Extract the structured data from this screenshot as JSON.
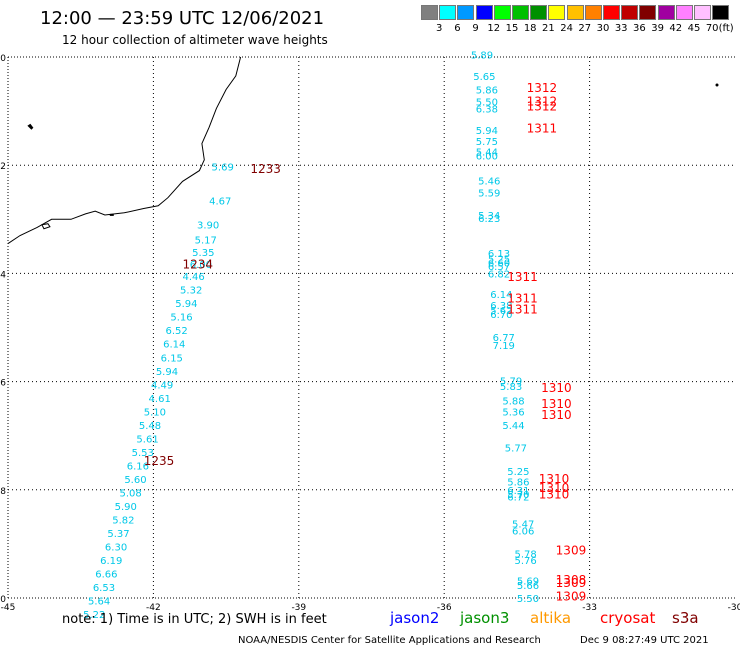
{
  "header": {
    "title": "12:00 — 23:59 UTC 12/06/2021",
    "subtitle": "12 hour collection of altimeter wave heights"
  },
  "scale": {
    "unit": "(ft)",
    "colors": [
      "#808080",
      "#00ffff",
      "#0099ff",
      "#0000ff",
      "#00ff00",
      "#00c000",
      "#009000",
      "#ffff00",
      "#ffc000",
      "#ff8000",
      "#ff0000",
      "#c00000",
      "#800000",
      "#a000a0",
      "#ff80ff",
      "#ffc0ff",
      "#000000"
    ],
    "labels": [
      "3",
      "6",
      "9",
      "12",
      "15",
      "18",
      "21",
      "24",
      "27",
      "30",
      "33",
      "36",
      "39",
      "42",
      "45",
      "70"
    ]
  },
  "axes": {
    "x_ticks": [
      "-45",
      "-42",
      "-39",
      "-36",
      "-33",
      "-30"
    ],
    "y_ticks": [
      "-20",
      "-22",
      "-24",
      "-26",
      "-28",
      "-30"
    ]
  },
  "passes": {
    "west_times": [
      {
        "text": "1233",
        "lon": -40.0,
        "lat": -22.05
      },
      {
        "text": "1234",
        "lon": -41.4,
        "lat": -23.82
      },
      {
        "text": "1235",
        "lon": -42.2,
        "lat": -27.45
      }
    ],
    "east_times": [
      {
        "text": "1312",
        "lon": -34.3,
        "lat": -20.55
      },
      {
        "text": "1312",
        "lon": -34.3,
        "lat": -20.8
      },
      {
        "text": "1312",
        "lon": -34.3,
        "lat": -20.9
      },
      {
        "text": "1311",
        "lon": -34.3,
        "lat": -21.3
      },
      {
        "text": "1311",
        "lon": -34.7,
        "lat": -24.05
      },
      {
        "text": "1311",
        "lon": -34.7,
        "lat": -24.45
      },
      {
        "text": "1311",
        "lon": -34.7,
        "lat": -24.65
      },
      {
        "text": "1310",
        "lon": -34.0,
        "lat": -26.1
      },
      {
        "text": "1310",
        "lon": -34.0,
        "lat": -26.4
      },
      {
        "text": "1310",
        "lon": -34.0,
        "lat": -26.6
      },
      {
        "text": "1310",
        "lon": -34.05,
        "lat": -27.78
      },
      {
        "text": "1310",
        "lon": -34.05,
        "lat": -27.95
      },
      {
        "text": "1310",
        "lon": -34.05,
        "lat": -28.07
      },
      {
        "text": "1309",
        "lon": -33.7,
        "lat": -29.1
      },
      {
        "text": "1308",
        "lon": -33.7,
        "lat": -29.65
      },
      {
        "text": "1309",
        "lon": -33.7,
        "lat": -29.7
      },
      {
        "text": "1309",
        "lon": -33.7,
        "lat": -29.95
      }
    ],
    "west_swh": [
      {
        "v": "5.69",
        "lon": -40.8,
        "lat": -22.02
      },
      {
        "v": "4.67",
        "lon": -40.85,
        "lat": -22.65
      },
      {
        "v": "3.90",
        "lon": -41.1,
        "lat": -23.1
      },
      {
        "v": "5.17",
        "lon": -41.15,
        "lat": -23.37
      },
      {
        "v": "5.35",
        "lon": -41.2,
        "lat": -23.6
      },
      {
        "v": "6.00",
        "lon": -41.25,
        "lat": -23.83
      },
      {
        "v": "4.46",
        "lon": -41.4,
        "lat": -24.05
      },
      {
        "v": "5.32",
        "lon": -41.45,
        "lat": -24.3
      },
      {
        "v": "5.94",
        "lon": -41.55,
        "lat": -24.55
      },
      {
        "v": "5.16",
        "lon": -41.65,
        "lat": -24.8
      },
      {
        "v": "6.52",
        "lon": -41.75,
        "lat": -25.05
      },
      {
        "v": "6.14",
        "lon": -41.8,
        "lat": -25.3
      },
      {
        "v": "6.15",
        "lon": -41.85,
        "lat": -25.55
      },
      {
        "v": "5.94",
        "lon": -41.95,
        "lat": -25.8
      },
      {
        "v": "4.49",
        "lon": -42.05,
        "lat": -26.05
      },
      {
        "v": "4.61",
        "lon": -42.1,
        "lat": -26.3
      },
      {
        "v": "5.10",
        "lon": -42.2,
        "lat": -26.55
      },
      {
        "v": "5.48",
        "lon": -42.3,
        "lat": -26.8
      },
      {
        "v": "5.61",
        "lon": -42.35,
        "lat": -27.05
      },
      {
        "v": "5.53",
        "lon": -42.45,
        "lat": -27.3
      },
      {
        "v": "6.16",
        "lon": -42.55,
        "lat": -27.55
      },
      {
        "v": "5.60",
        "lon": -42.6,
        "lat": -27.8
      },
      {
        "v": "5.08",
        "lon": -42.7,
        "lat": -28.05
      },
      {
        "v": "5.90",
        "lon": -42.8,
        "lat": -28.3
      },
      {
        "v": "5.82",
        "lon": -42.85,
        "lat": -28.55
      },
      {
        "v": "5.37",
        "lon": -42.95,
        "lat": -28.8
      },
      {
        "v": "6.30",
        "lon": -43.0,
        "lat": -29.05
      },
      {
        "v": "6.19",
        "lon": -43.1,
        "lat": -29.3
      },
      {
        "v": "6.66",
        "lon": -43.2,
        "lat": -29.55
      },
      {
        "v": "6.53",
        "lon": -43.25,
        "lat": -29.8
      },
      {
        "v": "5.64",
        "lon": -43.35,
        "lat": -30.05
      },
      {
        "v": "5.22",
        "lon": -43.45,
        "lat": -30.3
      }
    ],
    "east_swh": [
      {
        "v": "5.89",
        "lon": -35.45,
        "lat": -19.95
      },
      {
        "v": "5.65",
        "lon": -35.4,
        "lat": -20.35
      },
      {
        "v": "5.86",
        "lon": -35.35,
        "lat": -20.6
      },
      {
        "v": "5.50",
        "lon": -35.35,
        "lat": -20.82
      },
      {
        "v": "6.38",
        "lon": -35.35,
        "lat": -20.95
      },
      {
        "v": "5.94",
        "lon": -35.35,
        "lat": -21.35
      },
      {
        "v": "5.75",
        "lon": -35.35,
        "lat": -21.55
      },
      {
        "v": "5.44",
        "lon": -35.35,
        "lat": -21.75
      },
      {
        "v": "6.00",
        "lon": -35.35,
        "lat": -21.82
      },
      {
        "v": "5.46",
        "lon": -35.3,
        "lat": -22.28
      },
      {
        "v": "5.59",
        "lon": -35.3,
        "lat": -22.5
      },
      {
        "v": "5.34",
        "lon": -35.3,
        "lat": -22.92
      },
      {
        "v": "6.23",
        "lon": -35.3,
        "lat": -22.98
      },
      {
        "v": "6.13",
        "lon": -35.1,
        "lat": -23.62
      },
      {
        "v": "5.25",
        "lon": -35.1,
        "lat": -23.72
      },
      {
        "v": "6.60",
        "lon": -35.1,
        "lat": -23.8
      },
      {
        "v": "6.57",
        "lon": -35.1,
        "lat": -23.86
      },
      {
        "v": "6.82",
        "lon": -35.1,
        "lat": -24.0
      },
      {
        "v": "6.14",
        "lon": -35.05,
        "lat": -24.38
      },
      {
        "v": "6.38",
        "lon": -35.05,
        "lat": -24.58
      },
      {
        "v": "5.62",
        "lon": -35.05,
        "lat": -24.68
      },
      {
        "v": "6.70",
        "lon": -35.05,
        "lat": -24.75
      },
      {
        "v": "6.77",
        "lon": -35.0,
        "lat": -25.18
      },
      {
        "v": "7.19",
        "lon": -35.0,
        "lat": -25.32
      },
      {
        "v": "5.79",
        "lon": -34.85,
        "lat": -25.98
      },
      {
        "v": "5.83",
        "lon": -34.85,
        "lat": -26.08
      },
      {
        "v": "5.88",
        "lon": -34.8,
        "lat": -26.35
      },
      {
        "v": "5.36",
        "lon": -34.8,
        "lat": -26.55
      },
      {
        "v": "5.44",
        "lon": -34.8,
        "lat": -26.8
      },
      {
        "v": "5.77",
        "lon": -34.75,
        "lat": -27.22
      },
      {
        "v": "5.25",
        "lon": -34.7,
        "lat": -27.65
      },
      {
        "v": "5.86",
        "lon": -34.7,
        "lat": -27.85
      },
      {
        "v": "6.31",
        "lon": -34.7,
        "lat": -28.0
      },
      {
        "v": "5.70",
        "lon": -34.7,
        "lat": -28.08
      },
      {
        "v": "6.72",
        "lon": -34.7,
        "lat": -28.12
      },
      {
        "v": "5.47",
        "lon": -34.6,
        "lat": -28.62
      },
      {
        "v": "6.06",
        "lon": -34.6,
        "lat": -28.75
      },
      {
        "v": "5.78",
        "lon": -34.55,
        "lat": -29.18
      },
      {
        "v": "5.76",
        "lon": -34.55,
        "lat": -29.3
      },
      {
        "v": "5.69",
        "lon": -34.5,
        "lat": -29.68
      },
      {
        "v": "5.66",
        "lon": -34.5,
        "lat": -29.76
      },
      {
        "v": "5.50",
        "lon": -34.5,
        "lat": -30.0
      }
    ]
  },
  "coast_color": "#000000",
  "swh_color": "#00c8e8",
  "west_time_color": "#800000",
  "east_time_color": "#ff0000",
  "footer": {
    "note": "note:  1) Time is in UTC;  2) SWH is in feet",
    "satellites": [
      {
        "name": "jason2",
        "color": "#0000ff"
      },
      {
        "name": "jason3",
        "color": "#009000"
      },
      {
        "name": "altika",
        "color": "#ff9900"
      },
      {
        "name": "cryosat",
        "color": "#ff0000"
      },
      {
        "name": "s3a",
        "color": "#800000"
      }
    ],
    "credit": "NOAA/NESDIS Center for Satellite Applications and Research",
    "timestamp": "Dec  9 08:27:49 UTC 2021"
  }
}
